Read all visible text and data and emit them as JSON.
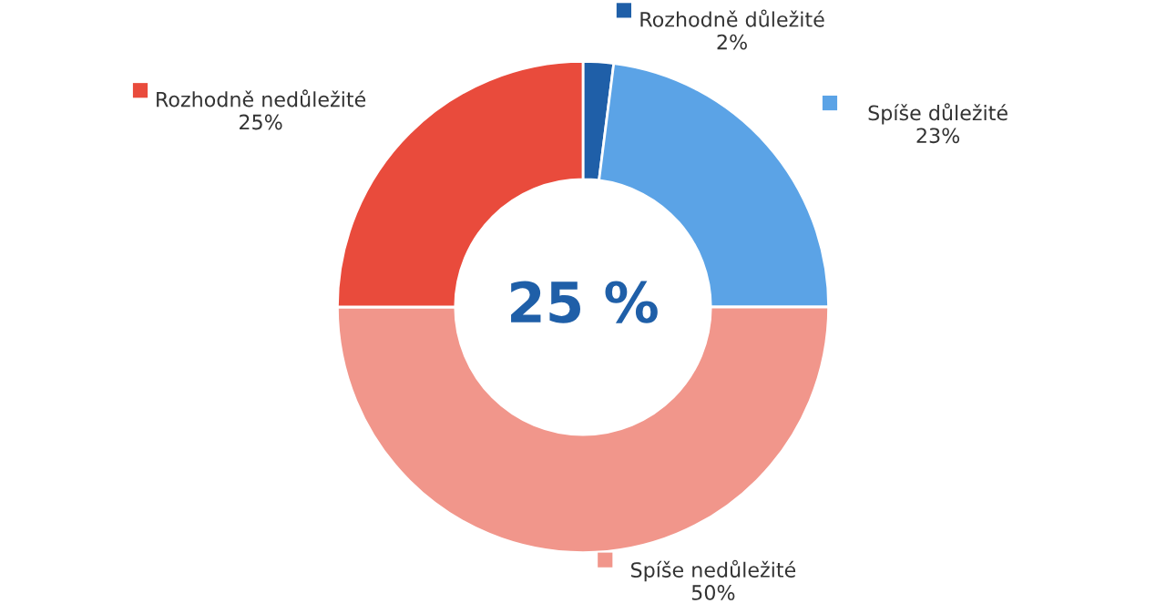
{
  "chart_data": {
    "type": "donut",
    "categories": [
      "Rozhodně důležité",
      "Spíše důležité",
      "Spíše nedůležité",
      "Rozhodně nedůležité"
    ],
    "values": [
      2,
      23,
      50,
      25
    ],
    "colors": [
      "#1f5fa8",
      "#5ba3e6",
      "#f1968b",
      "#e94b3c"
    ],
    "value_labels": [
      "2%",
      "23%",
      "50%",
      "25%"
    ],
    "annotations": [
      "25 %"
    ],
    "legend": "top"
  }
}
